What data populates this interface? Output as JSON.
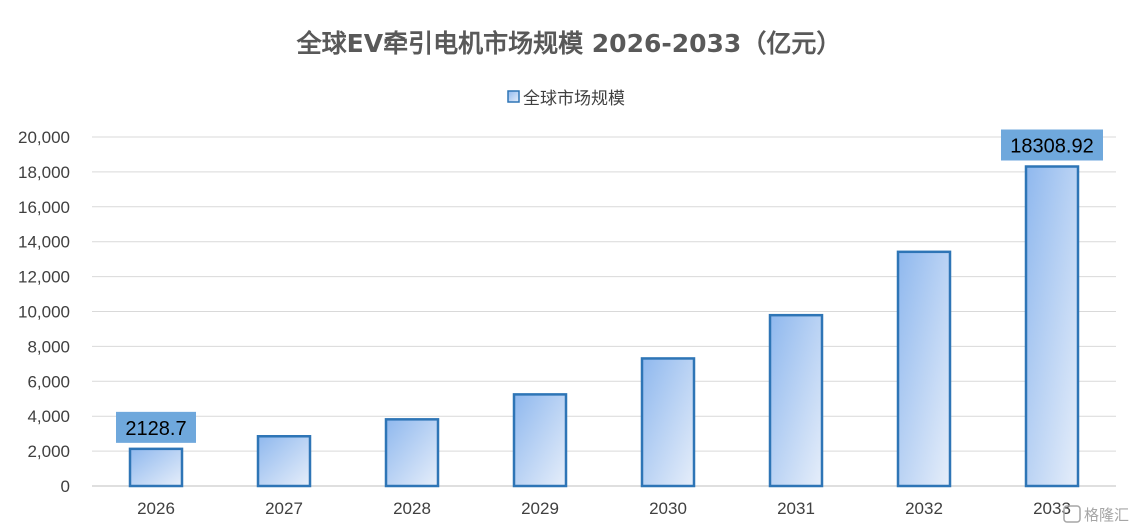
{
  "chart_data": {
    "type": "bar",
    "title": "全球EV牵引电机市场规模 2026-2033（亿元）",
    "legend": {
      "position": "top",
      "entries": [
        "全球市场规模"
      ]
    },
    "categories": [
      "2026",
      "2027",
      "2028",
      "2029",
      "2030",
      "2031",
      "2032",
      "2033"
    ],
    "series": [
      {
        "name": "全球市场规模",
        "values": [
          2128.7,
          2850,
          3820,
          5250,
          7310,
          9790,
          13420,
          18308.92
        ]
      }
    ],
    "data_labels": [
      {
        "index": 0,
        "text": "2128.7"
      },
      {
        "index": 7,
        "text": "18308.92"
      }
    ],
    "ylim": [
      0,
      20000
    ],
    "yticks": [
      "0",
      "2,000",
      "4,000",
      "6,000",
      "8,000",
      "10,000",
      "12,000",
      "14,000",
      "16,000",
      "18,000",
      "20,000"
    ],
    "xlabel": "",
    "ylabel": "",
    "grid": true,
    "colors": {
      "bar_fill_start": "#8fb8ee",
      "bar_fill_end": "#e6eefa",
      "bar_stroke": "#2e75b6",
      "label_box": "#6fa8dc"
    }
  },
  "watermark": {
    "icon": "gelonghui-logo-icon",
    "text": "格隆汇"
  }
}
